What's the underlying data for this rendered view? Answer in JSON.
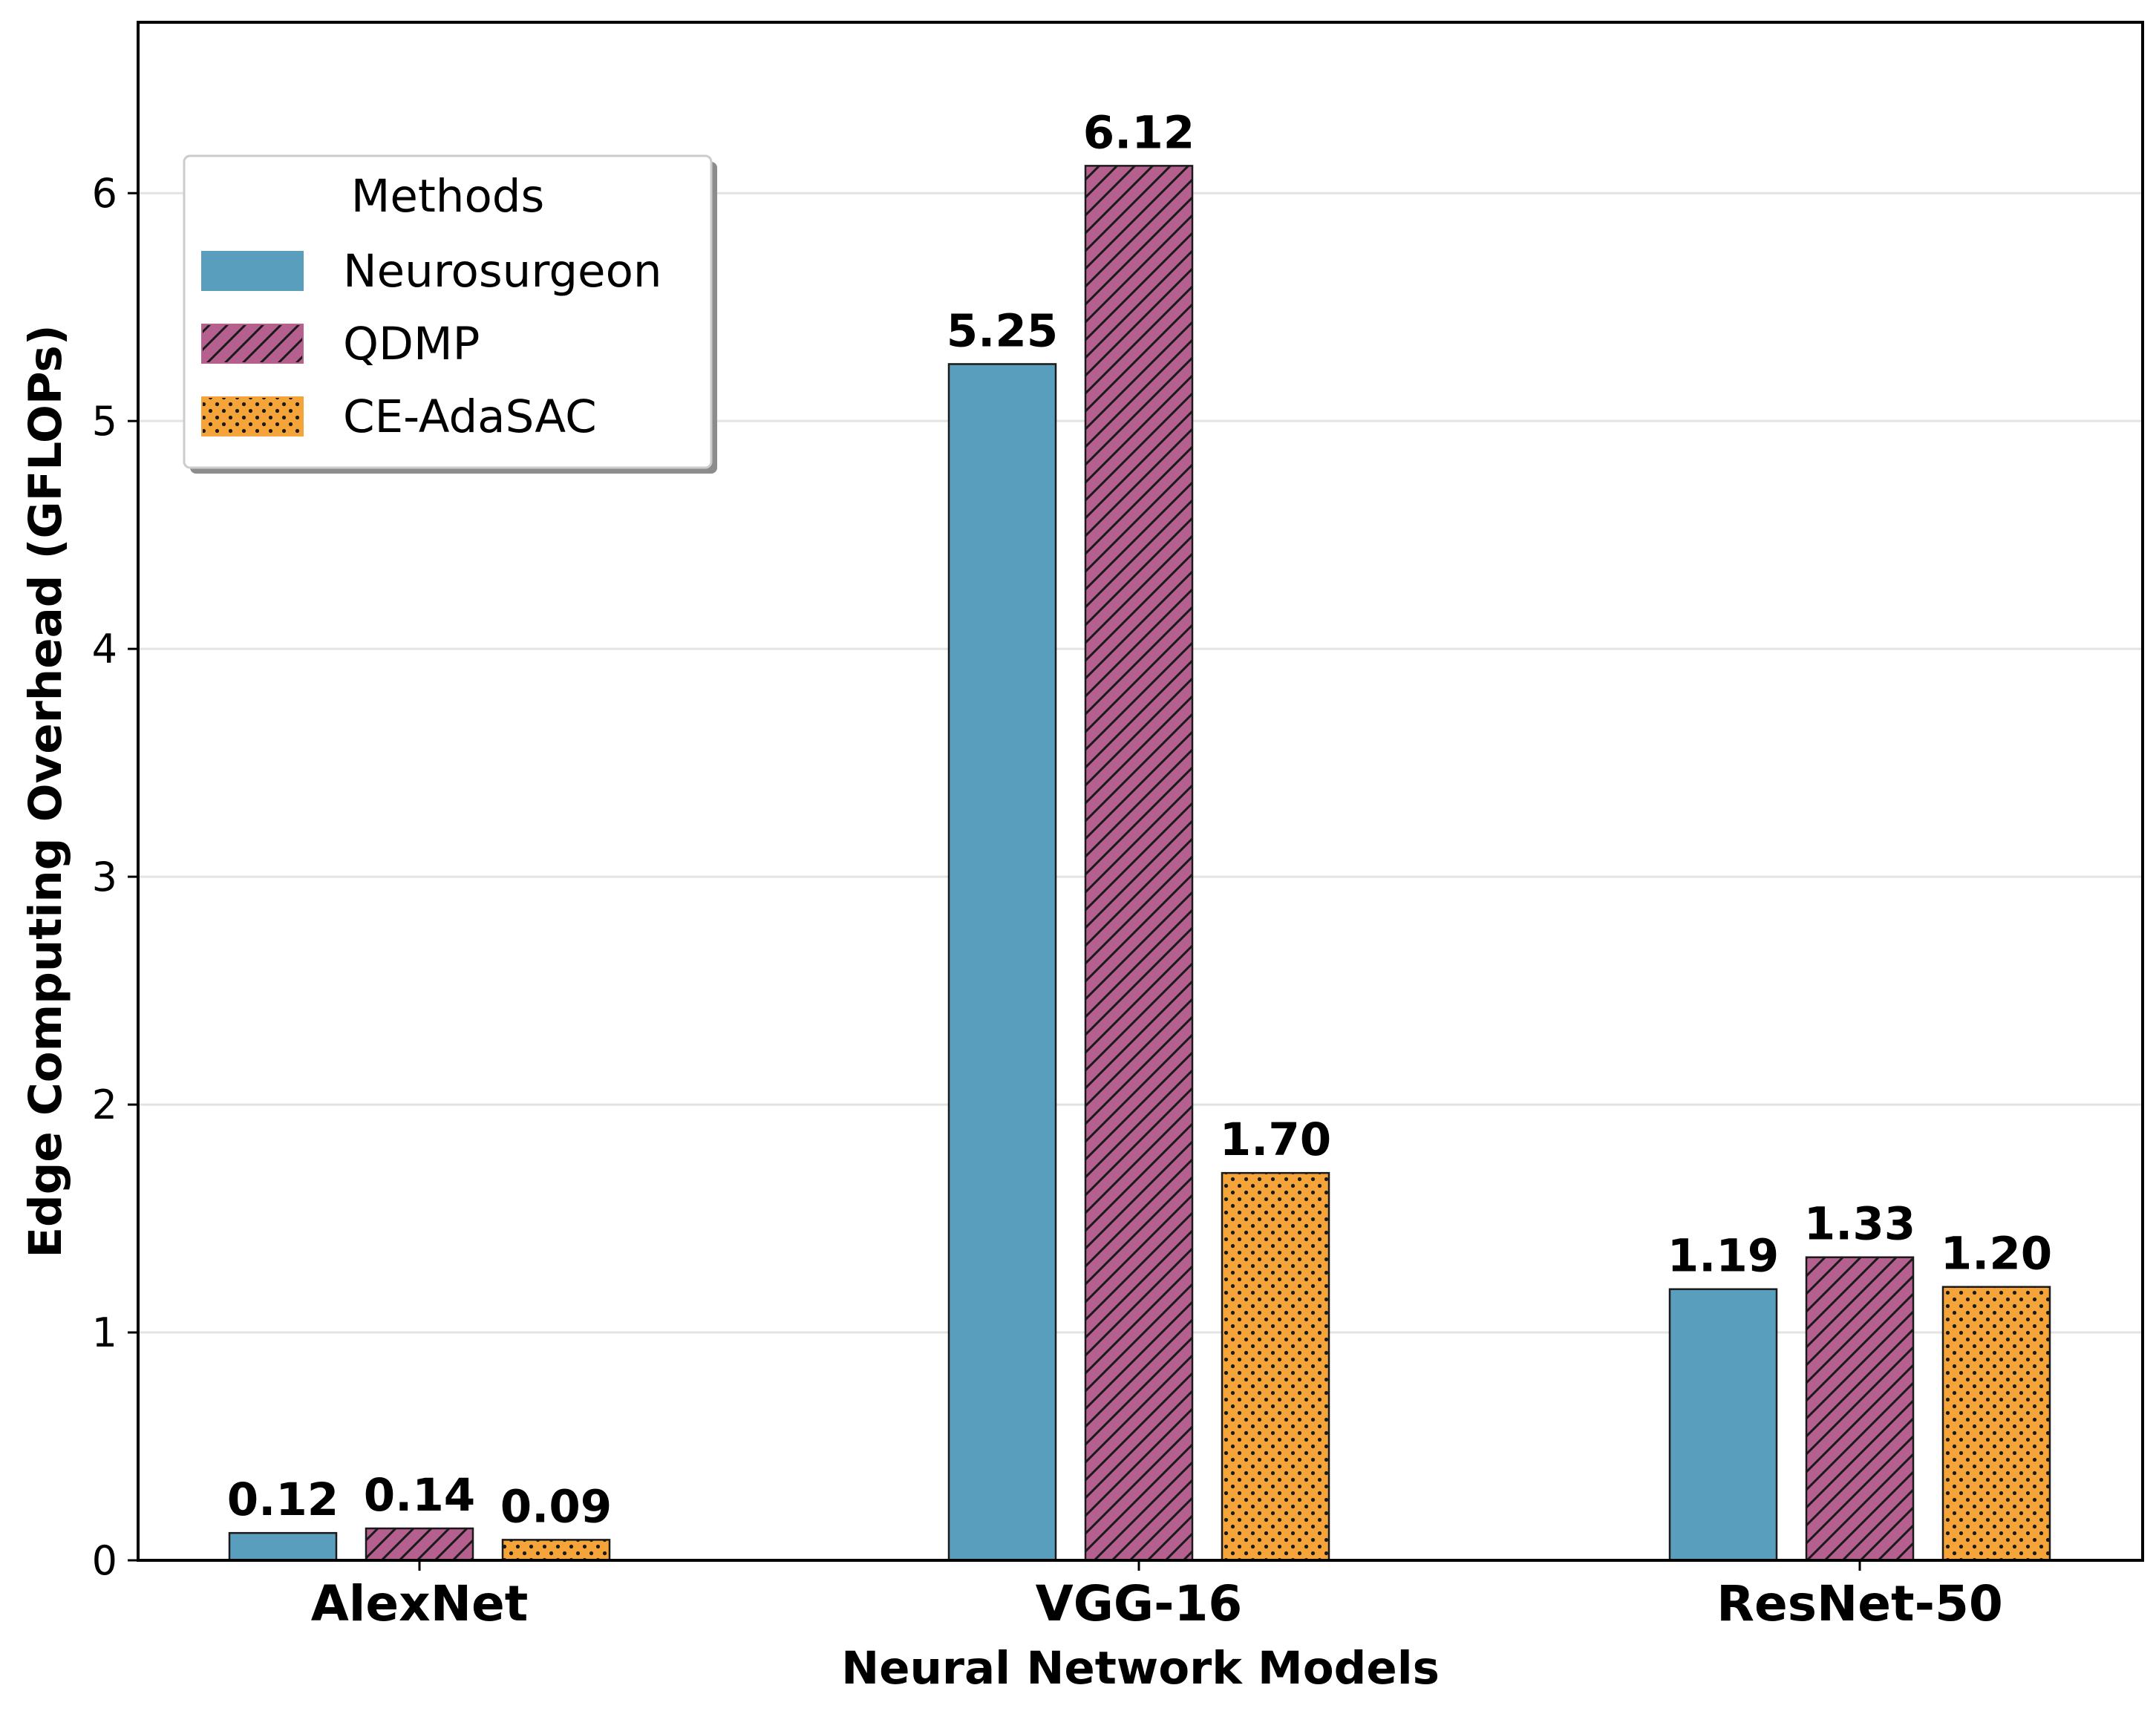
{
  "chart_data": {
    "type": "bar",
    "categories": [
      "AlexNet",
      "VGG-16",
      "ResNet-50"
    ],
    "series": [
      {
        "name": "Neurosurgeon",
        "values": [
          0.12,
          5.25,
          1.19
        ],
        "labels": [
          "0.12",
          "5.25",
          "1.19"
        ],
        "color": "#5a9ebd",
        "pattern": "solid"
      },
      {
        "name": "QDMP",
        "values": [
          0.14,
          6.12,
          1.33
        ],
        "labels": [
          "0.14",
          "6.12",
          "1.33"
        ],
        "color": "#b5608e",
        "pattern": "diagonal-hatch"
      },
      {
        "name": "CE-AdaSAC",
        "values": [
          0.09,
          1.7,
          1.2
        ],
        "labels": [
          "0.09",
          "1.70",
          "1.20"
        ],
        "color": "#f5a43a",
        "pattern": "dots"
      }
    ],
    "xlabel": "Neural Network Models",
    "ylabel": "Edge Computing Overhead (GFLOPs)",
    "ylim": [
      0,
      6.75
    ],
    "yticks": [
      0,
      1,
      2,
      3,
      4,
      5,
      6
    ],
    "ytick_labels": [
      "0",
      "1",
      "2",
      "3",
      "4",
      "5",
      "6"
    ],
    "grid": "horizontal",
    "legend": {
      "title": "Methods",
      "placement": "upper-left"
    }
  }
}
